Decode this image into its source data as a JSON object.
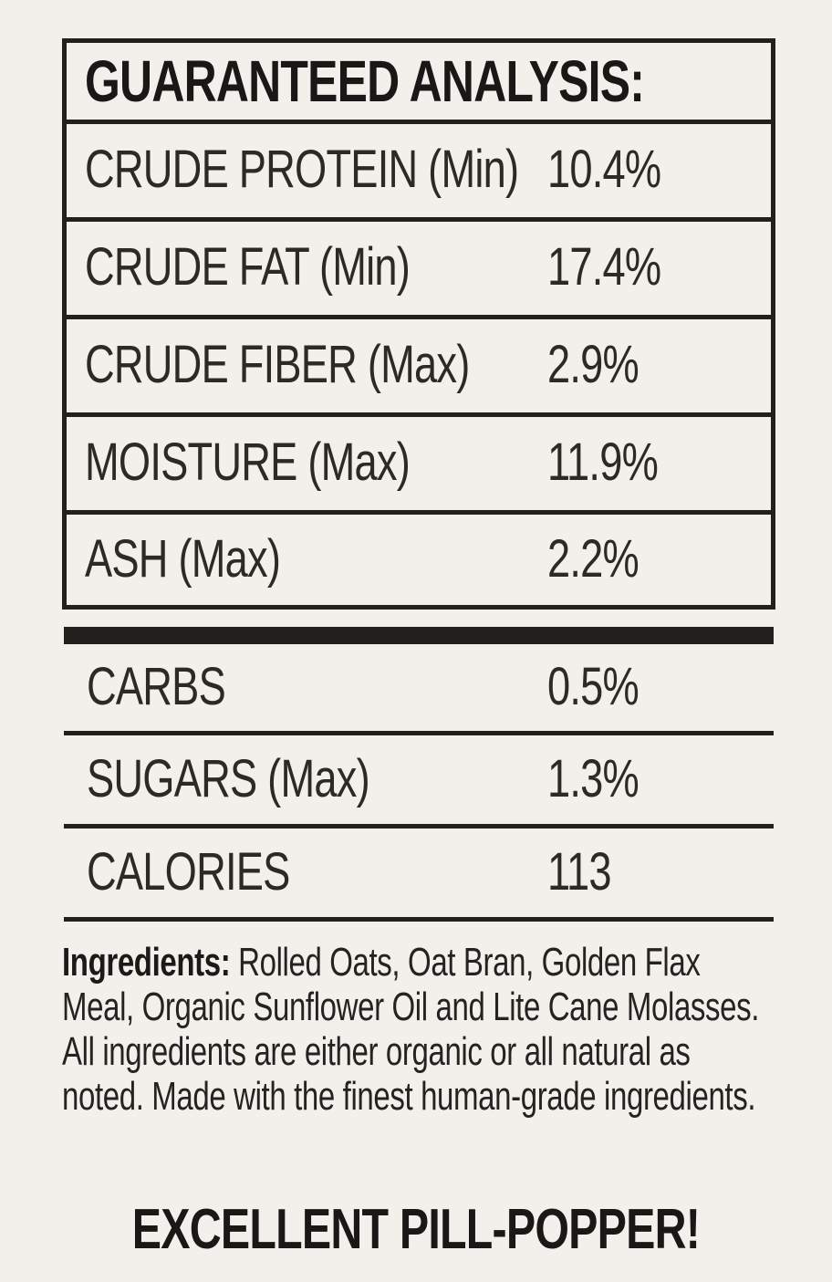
{
  "analysis": {
    "header": "GUARANTEED ANALYSIS:",
    "rows": [
      {
        "label": "CRUDE PROTEIN (Min)",
        "value": "10.4%"
      },
      {
        "label": "CRUDE FAT (Min)",
        "value": "17.4%"
      },
      {
        "label": "CRUDE FIBER (Max)",
        "value": "2.9%"
      },
      {
        "label": "MOISTURE (Max)",
        "value": "11.9%"
      },
      {
        "label": "ASH (Max)",
        "value": "2.2%"
      }
    ]
  },
  "supplemental": {
    "rows": [
      {
        "label": "CARBS",
        "value": "0.5%"
      },
      {
        "label": "SUGARS (Max)",
        "value": "1.3%"
      },
      {
        "label": "CALORIES",
        "value": "113"
      }
    ]
  },
  "ingredients": {
    "label": "Ingredients:",
    "text": "Rolled Oats, Oat Bran, Golden Flax Meal, Organic Sunflower Oil and Lite Cane Molasses. All ingredients are either organic or all natural as noted. Made with the finest human-grade ingredients."
  },
  "footer_note": "EXCELLENT PILL-POPPER!",
  "colors": {
    "background": "#f2f0eb",
    "ink": "#21201d",
    "text": "#2b2a27"
  }
}
